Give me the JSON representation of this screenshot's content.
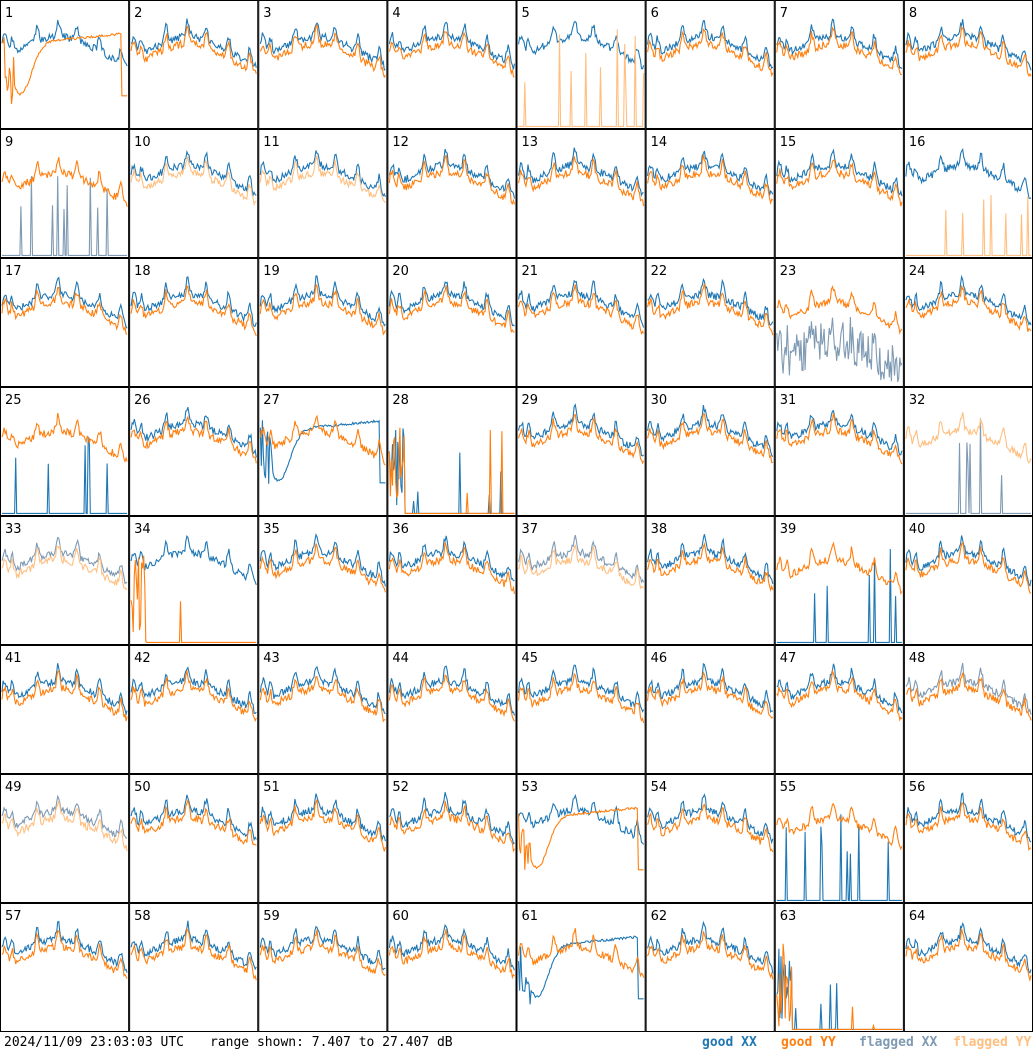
{
  "chart_data": {
    "type": "line",
    "layout": "8x8 small multiples (one tile per input)",
    "tiles": [
      "1",
      "2",
      "3",
      "4",
      "5",
      "6",
      "7",
      "8",
      "9",
      "10",
      "11",
      "12",
      "13",
      "14",
      "15",
      "16",
      "17",
      "18",
      "19",
      "20",
      "21",
      "22",
      "23",
      "24",
      "25",
      "26",
      "27",
      "28",
      "29",
      "30",
      "31",
      "32",
      "33",
      "34",
      "35",
      "36",
      "37",
      "38",
      "39",
      "40",
      "41",
      "42",
      "43",
      "44",
      "45",
      "46",
      "47",
      "48",
      "49",
      "50",
      "51",
      "52",
      "53",
      "54",
      "55",
      "56",
      "57",
      "58",
      "59",
      "60",
      "61",
      "62",
      "63",
      "64"
    ],
    "ylim_db": [
      7.407,
      27.407
    ],
    "legend": {
      "good_xx": {
        "prefix": "good",
        "name": "XX",
        "color": "#1f77b4"
      },
      "good_yy": {
        "prefix": "good",
        "name": "YY",
        "color": "#ff7f0e"
      },
      "flagged_xx": {
        "prefix": "flagged",
        "name": "XX",
        "color": "#7f9ab3"
      },
      "flagged_yy": {
        "prefix": "flagged",
        "name": "YY",
        "color": "#ffbf80"
      }
    },
    "tile_status": {
      "xx": [
        "g",
        "g",
        "g",
        "g",
        "g",
        "g",
        "g",
        "g",
        "f",
        "g",
        "g",
        "g",
        "g",
        "g",
        "g",
        "g",
        "g",
        "g",
        "g",
        "g",
        "g",
        "g",
        "f",
        "g",
        "g",
        "g",
        "g",
        "g",
        "g",
        "g",
        "g",
        "f",
        "f",
        "g",
        "g",
        "g",
        "f",
        "g",
        "g",
        "g",
        "g",
        "g",
        "g",
        "g",
        "g",
        "g",
        "g",
        "f",
        "f",
        "g",
        "g",
        "g",
        "g",
        "g",
        "g",
        "g",
        "g",
        "g",
        "g",
        "g",
        "g",
        "g",
        "g",
        "g"
      ],
      "yy": [
        "g",
        "g",
        "g",
        "g",
        "f",
        "g",
        "g",
        "g",
        "g",
        "f",
        "f",
        "g",
        "g",
        "g",
        "g",
        "f",
        "g",
        "g",
        "g",
        "g",
        "g",
        "g",
        "g",
        "g",
        "g",
        "g",
        "g",
        "g",
        "g",
        "g",
        "g",
        "f",
        "f",
        "g",
        "g",
        "g",
        "f",
        "g",
        "g",
        "g",
        "g",
        "g",
        "g",
        "g",
        "g",
        "g",
        "g",
        "g",
        "f",
        "g",
        "g",
        "g",
        "g",
        "g",
        "g",
        "g",
        "g",
        "g",
        "g",
        "g",
        "g",
        "g",
        "g",
        "g"
      ]
    },
    "curve_kind": {
      "xx": [
        "n",
        "n",
        "n",
        "n",
        "n",
        "n",
        "n",
        "n",
        "s",
        "n",
        "n",
        "n",
        "n",
        "n",
        "n",
        "n",
        "n",
        "n",
        "n",
        "n",
        "n",
        "n",
        "w",
        "n",
        "s",
        "n",
        "h",
        "d",
        "n",
        "n",
        "n",
        "s",
        "n",
        "n",
        "n",
        "n",
        "n",
        "n",
        "s",
        "n",
        "n",
        "n",
        "n",
        "n",
        "n",
        "n",
        "n",
        "n",
        "n",
        "n",
        "n",
        "n",
        "n",
        "n",
        "s",
        "n",
        "n",
        "n",
        "n",
        "n",
        "h",
        "n",
        "d",
        "n"
      ],
      "yy": [
        "h",
        "n",
        "n",
        "n",
        "s",
        "n",
        "n",
        "n",
        "n",
        "n",
        "n",
        "n",
        "n",
        "n",
        "n",
        "s",
        "n",
        "n",
        "n",
        "n",
        "n",
        "n",
        "n",
        "n",
        "n",
        "n",
        "n",
        "d",
        "n",
        "n",
        "n",
        "n",
        "n",
        "d",
        "n",
        "n",
        "n",
        "n",
        "n",
        "n",
        "n",
        "n",
        "n",
        "n",
        "n",
        "n",
        "n",
        "n",
        "n",
        "n",
        "n",
        "n",
        "h",
        "n",
        "n",
        "n",
        "n",
        "n",
        "n",
        "n",
        "n",
        "n",
        "d",
        "n"
      ]
    }
  },
  "footer": {
    "timestamp": "2024/11/09 23:03:03 UTC",
    "range_text": "range shown: 7.407 to 27.407 dB"
  }
}
